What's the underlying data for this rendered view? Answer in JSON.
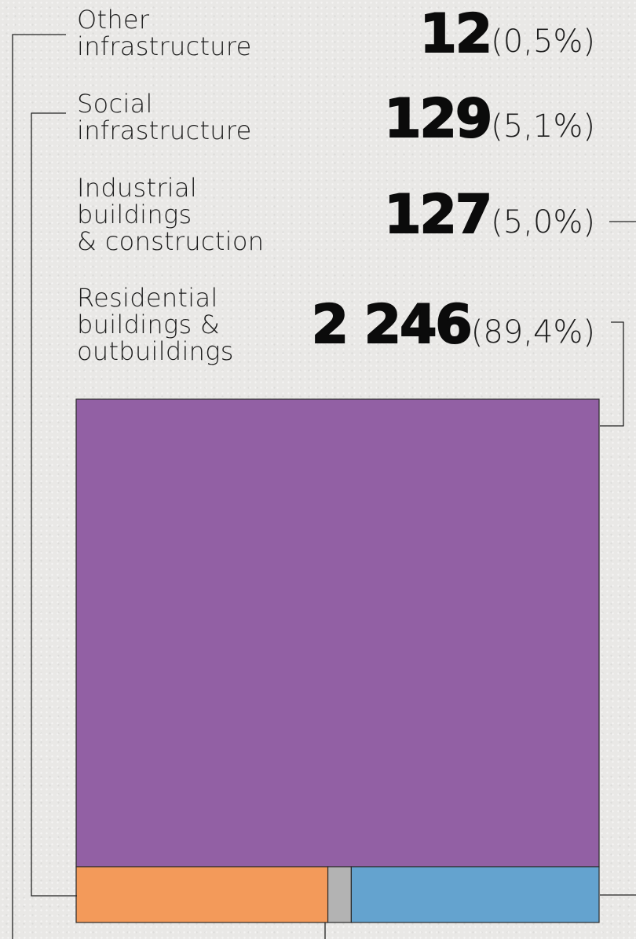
{
  "chart_data": {
    "type": "treemap",
    "categories": [
      {
        "key": "other",
        "label": "Other\ninfrastructure",
        "value": "12",
        "value_num": 12,
        "percent": "(0,5%)",
        "color": "#b3b3b3"
      },
      {
        "key": "social",
        "label": "Social\ninfrastructure",
        "value": "129",
        "value_num": 129,
        "percent": "(5,1%)",
        "color": "#f39a5a"
      },
      {
        "key": "industrial",
        "label": "Industrial\nbuildings\n& construction",
        "value": "127",
        "value_num": 127,
        "percent": "(5,0%)",
        "color": "#64a3cf"
      },
      {
        "key": "residential",
        "label": "Residential\nbuildings &\noutbuildings",
        "value": "2 246",
        "value_num": 2246,
        "percent": "(89,4%)",
        "color": "#9260a4"
      }
    ]
  }
}
